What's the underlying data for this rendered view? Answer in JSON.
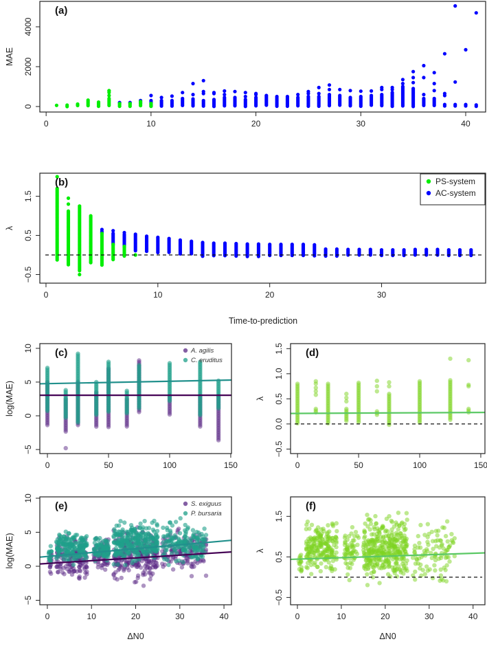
{
  "shared_xlabel_ab": "Time-to-prediction",
  "chart_data": [
    {
      "panel": "(a)",
      "type": "scatter",
      "ylabel": "MAE",
      "xlabel": "",
      "xlim": [
        -0.6,
        41.9
      ],
      "ylim": [
        -276,
        5276
      ],
      "x_ticks": [
        0,
        10,
        20,
        30,
        40
      ],
      "x_tick_labels": [
        "0",
        "10",
        "20",
        "30",
        "40"
      ],
      "y_ticks": [
        0,
        2000,
        4000
      ],
      "y_tick_labels": [
        "0",
        "2000",
        "4000"
      ],
      "reference_line": null,
      "series": [
        {
          "name": "PS-system",
          "color": "#00ee00",
          "opacity": 1,
          "columns": [
            [
              1,
              0,
              60
            ],
            [
              2,
              0,
              70
            ],
            [
              3,
              0,
              120
            ],
            [
              4,
              0,
              320
            ],
            [
              5,
              0,
              220
            ],
            [
              6,
              0,
              400,
              550,
              700,
              780,
              800
            ],
            [
              7,
              0,
              150
            ],
            [
              8,
              0,
              150
            ],
            [
              9,
              0,
              250
            ],
            [
              10,
              0,
              150
            ]
          ]
        },
        {
          "name": "AC-system",
          "color": "#0000ff",
          "opacity": 1,
          "columns": [
            [
              7,
              180,
              200
            ],
            [
              8,
              180,
              200
            ],
            [
              9,
              150,
              300
            ],
            [
              10,
              0,
              300,
              550
            ],
            [
              11,
              0,
              300,
              450
            ],
            [
              12,
              0,
              300,
              520
            ],
            [
              13,
              0,
              400,
              700
            ],
            [
              14,
              0,
              380,
              600,
              1150
            ],
            [
              15,
              0,
              300,
              650,
              750,
              1300
            ],
            [
              16,
              0,
              350,
              650,
              700
            ],
            [
              17,
              0,
              450,
              600,
              780
            ],
            [
              18,
              0,
              450,
              750
            ],
            [
              19,
              0,
              350,
              500,
              700
            ],
            [
              20,
              0,
              450,
              600,
              650
            ],
            [
              21,
              0,
              550
            ],
            [
              22,
              0,
              500
            ],
            [
              23,
              0,
              500
            ],
            [
              24,
              0,
              450,
              600
            ],
            [
              25,
              0,
              500,
              650,
              750
            ],
            [
              26,
              0,
              500,
              650,
              950
            ],
            [
              27,
              0,
              600,
              850,
              1080
            ],
            [
              28,
              0,
              550,
              850
            ],
            [
              29,
              0,
              450,
              800
            ],
            [
              30,
              0,
              500,
              770
            ],
            [
              31,
              0,
              550,
              780
            ],
            [
              32,
              0,
              600,
              850,
              950
            ],
            [
              33,
              0,
              700,
              850,
              950
            ],
            [
              34,
              0,
              1000,
              1150,
              1350
            ],
            [
              35,
              0,
              900,
              1200,
              1450,
              1750
            ],
            [
              36,
              0,
              400,
              600,
              1450,
              2050
            ],
            [
              37,
              0,
              400,
              800,
              1150,
              1700
            ],
            [
              38,
              0,
              100,
              550,
              650,
              2650
            ],
            [
              39,
              0,
              100,
              1230,
              5050
            ],
            [
              40,
              0,
              100,
              2850
            ],
            [
              41,
              0,
              80,
              4700
            ]
          ]
        }
      ]
    },
    {
      "panel": "(b)",
      "type": "scatter",
      "ylabel": "λ",
      "xlabel": "Time-to-prediction",
      "xlim": [
        -0.55,
        39.3
      ],
      "ylim": [
        -0.72,
        2.09
      ],
      "x_ticks": [
        0,
        10,
        20,
        30
      ],
      "x_tick_labels": [
        "0",
        "10",
        "20",
        "30"
      ],
      "y_ticks": [
        -0.5,
        0.5,
        1.5
      ],
      "y_tick_labels": [
        "−0.5",
        "0.5",
        "1.5"
      ],
      "reference_line": 0,
      "legend": "top-right",
      "series": [
        {
          "name": "PS-system",
          "color": "#00ee00",
          "opacity": 1,
          "columns": [
            [
              1,
              -0.15,
              1.7,
              2.0
            ],
            [
              2,
              -0.25,
              1.12,
              1.3,
              1.45
            ],
            [
              3,
              -0.42,
              1.25,
              -0.5
            ],
            [
              4,
              -0.2,
              1.0
            ],
            [
              5,
              -0.27,
              0.55
            ],
            [
              6,
              -0.15,
              0.27
            ],
            [
              7,
              -0.05,
              0.22
            ],
            [
              8,
              0,
              0
            ]
          ]
        },
        {
          "name": "AC-system",
          "color": "#0000ff",
          "opacity": 1,
          "columns": [
            [
              5,
              0.55,
              0.6,
              0.65
            ],
            [
              6,
              0.25,
              0.55,
              0.62
            ],
            [
              7,
              0.2,
              0.52,
              0.57
            ],
            [
              8,
              0.1,
              0.53
            ],
            [
              9,
              0.08,
              0.48
            ],
            [
              10,
              0.05,
              0.45
            ],
            [
              11,
              0.04,
              0.42
            ],
            [
              12,
              0.02,
              0.38
            ],
            [
              13,
              0,
              0.35
            ],
            [
              14,
              -0.04,
              0.32
            ],
            [
              15,
              -0.05,
              0.3
            ],
            [
              16,
              -0.05,
              0.3
            ],
            [
              17,
              -0.06,
              0.29
            ],
            [
              18,
              -0.05,
              0.28
            ],
            [
              19,
              -0.05,
              0.28
            ],
            [
              20,
              -0.04,
              0.27
            ],
            [
              21,
              -0.04,
              0.27
            ],
            [
              22,
              -0.04,
              0.27
            ],
            [
              23,
              -0.03,
              0.27
            ],
            [
              24,
              -0.03,
              0.26
            ],
            [
              25,
              -0.03,
              0.15
            ],
            [
              26,
              -0.03,
              0.15
            ],
            [
              27,
              -0.02,
              0.14
            ],
            [
              28,
              -0.02,
              0.14
            ],
            [
              29,
              -0.02,
              0.14
            ],
            [
              30,
              -0.02,
              0.13
            ],
            [
              31,
              -0.02,
              0.13
            ],
            [
              32,
              -0.02,
              0.13
            ],
            [
              33,
              -0.03,
              0.14
            ],
            [
              34,
              -0.03,
              0.14
            ],
            [
              35,
              -0.03,
              0.14
            ],
            [
              36,
              -0.03,
              0.13
            ],
            [
              37,
              -0.04,
              0.13
            ],
            [
              38,
              -0.04,
              0.13
            ]
          ]
        }
      ]
    },
    {
      "panel": "(c)",
      "type": "scatter",
      "ylabel": "log(MAE)",
      "xlabel": "",
      "xlim": [
        -6.2,
        150.6
      ],
      "ylim": [
        -5.6,
        10.7
      ],
      "x_ticks": [
        0,
        50,
        100,
        150
      ],
      "x_tick_labels": [
        "0",
        "50",
        "100",
        "150"
      ],
      "y_ticks": [
        -5,
        0,
        5,
        10
      ],
      "y_tick_labels": [
        "−5",
        "0",
        "5",
        "10"
      ],
      "reference_line": null,
      "legend": "top-right",
      "series": [
        {
          "name": "A. agilis",
          "color": "#5b2a86",
          "line_color": "#440154",
          "opacity": 0.5,
          "columns": [
            [
              0,
              -1.6,
              5
            ],
            [
              15,
              -2.5,
              2.5,
              -4.8
            ],
            [
              25,
              -1.5,
              5
            ],
            [
              40,
              -1.8,
              3.5
            ],
            [
              50,
              -1.8,
              7
            ],
            [
              65,
              -1.8,
              2.5
            ],
            [
              75,
              0.5,
              8.2
            ],
            [
              100,
              0,
              3
            ],
            [
              125,
              -1.8,
              3
            ],
            [
              140,
              -3.8,
              3
            ]
          ],
          "fit": {
            "intercept": 3.05,
            "slope": 0
          }
        },
        {
          "name": "C. eruditus",
          "color": "#1fa08a",
          "line_color": "#21908c",
          "opacity": 0.6,
          "columns": [
            [
              0,
              0.5,
              7.1
            ],
            [
              15,
              -0.5,
              3.8
            ],
            [
              25,
              -1,
              9.2
            ],
            [
              40,
              0,
              5
            ],
            [
              50,
              0.5,
              8
            ],
            [
              65,
              0.3,
              3.7
            ],
            [
              75,
              1,
              7.5
            ],
            [
              100,
              2,
              7.8
            ],
            [
              125,
              0,
              8
            ],
            [
              140,
              1,
              5.2
            ]
          ],
          "fit": {
            "intercept": 4.77,
            "slope": 0.0035
          }
        }
      ]
    },
    {
      "panel": "(d)",
      "type": "scatter",
      "ylabel": "λ",
      "xlabel": "",
      "xlim": [
        -5.7,
        153.4
      ],
      "ylim": [
        -0.59,
        1.6
      ],
      "x_ticks": [
        0,
        50,
        100,
        150
      ],
      "x_tick_labels": [
        "0",
        "50",
        "100",
        "150"
      ],
      "y_ticks": [
        -0.5,
        0,
        0.5,
        1,
        1.5
      ],
      "y_tick_labels": [
        "−0.5",
        "0.0",
        "0.5",
        "1.0",
        "1.5"
      ],
      "reference_line": 0,
      "series": [
        {
          "name": "λ",
          "color": "#7ed321",
          "line_color": "#5ac864",
          "opacity": 0.5,
          "columns": [
            [
              0,
              0,
              0.8
            ],
            [
              15,
              0.2,
              0.3,
              0.58,
              0.65,
              0.72,
              0.8,
              0.85
            ],
            [
              25,
              0,
              0.8
            ],
            [
              40,
              0.05,
              0.3,
              0.45,
              0.52,
              0.6
            ],
            [
              50,
              0,
              0.82
            ],
            [
              65,
              0.15,
              0.25,
              0.65,
              0.75,
              0.86
            ],
            [
              75,
              -0.03,
              0.6,
              0.75,
              0.83
            ],
            [
              100,
              0,
              0.85
            ],
            [
              125,
              0.05,
              0.87,
              1.3
            ],
            [
              140,
              0.2,
              0.3,
              0.75,
              0.78,
              1.27
            ]
          ],
          "fit": {
            "intercept": 0.21,
            "slope": 0.00013
          }
        }
      ]
    },
    {
      "panel": "(e)",
      "type": "scatter",
      "ylabel": "log(MAE)",
      "xlabel": "ΔN0",
      "xlim": [
        -1.7,
        41.7
      ],
      "ylim": [
        -5.66,
        10.2
      ],
      "x_ticks": [
        0,
        10,
        20,
        30,
        40
      ],
      "x_tick_labels": [
        "0",
        "10",
        "20",
        "30",
        "40"
      ],
      "y_ticks": [
        -5,
        0,
        5,
        10
      ],
      "y_tick_labels": [
        "−5",
        "0",
        "5",
        "10"
      ],
      "reference_line": null,
      "legend": "top-right",
      "series": [
        {
          "name": "S. exiguus",
          "color": "#5b2a86",
          "line_color": "#440154",
          "opacity": 0.5,
          "clusters": [
            [
              0.3,
              1,
              -1.8,
              3,
              15
            ],
            [
              2,
              9,
              -2.8,
              4.8,
              150
            ],
            [
              10.5,
              14,
              -1.5,
              5,
              70
            ],
            [
              15,
              25,
              -3.2,
              6.5,
              250
            ],
            [
              26,
              36,
              -2.2,
              6.4,
              140
            ]
          ],
          "fit": {
            "intercept": 0.41,
            "slope": 0.0407
          }
        },
        {
          "name": "P. bursaria",
          "color": "#1fa08a",
          "line_color": "#21908c",
          "opacity": 0.6,
          "clusters": [
            [
              0.3,
              1,
              0,
              3.2,
              15
            ],
            [
              2,
              9,
              -0.5,
              6,
              170
            ],
            [
              10.5,
              14,
              0,
              5,
              80
            ],
            [
              15,
              25,
              -0.5,
              7.4,
              280
            ],
            [
              26,
              36,
              -0.5,
              7.2,
              160
            ]
          ],
          "fit": {
            "intercept": 1.44,
            "slope": 0.057
          }
        }
      ]
    },
    {
      "panel": "(f)",
      "type": "scatter",
      "ylabel": "λ",
      "xlabel": "ΔN0",
      "xlim": [
        -1.56,
        42.7
      ],
      "ylim": [
        -0.68,
        1.98
      ],
      "x_ticks": [
        0,
        10,
        20,
        30,
        40
      ],
      "x_tick_labels": [
        "0",
        "10",
        "20",
        "30",
        "40"
      ],
      "y_ticks": [
        -0.5,
        0.5,
        1.5
      ],
      "y_tick_labels": [
        "−0.5",
        "0.5",
        "1.5"
      ],
      "reference_line": 0,
      "series": [
        {
          "name": "λ",
          "color": "#7ed321",
          "line_color": "#5ac864",
          "opacity": 0.5,
          "clusters": [
            [
              0.3,
              1,
              -0.1,
              0.75,
              15
            ],
            [
              2,
              9,
              -0.1,
              1.5,
              200
            ],
            [
              10.5,
              14,
              -0.25,
              1.55,
              60
            ],
            [
              15,
              25,
              -0.3,
              1.7,
              350
            ],
            [
              26,
              36,
              -0.5,
              1.6,
              100
            ]
          ],
          "fit": {
            "intercept": 0.445,
            "slope": 0.0036
          }
        }
      ]
    }
  ]
}
